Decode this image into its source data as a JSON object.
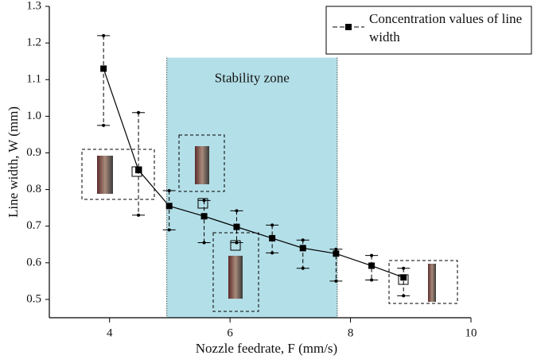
{
  "chart_data": {
    "type": "errorbar-line",
    "xlabel": "Nozzle feedrate, F (mm/s)",
    "ylabel": "Line width, W (mm)",
    "xlim": [
      3,
      10
    ],
    "ylim": [
      0.45,
      1.3
    ],
    "xticks": [
      4,
      6,
      8,
      10
    ],
    "yticks": [
      0.5,
      0.6,
      0.7,
      0.8,
      0.9,
      {
        "value": 1,
        "label": "1.0"
      },
      1.1,
      1.2,
      1.3
    ],
    "zone": {
      "label": "Stability zone",
      "x": [
        4.95,
        7.78
      ],
      "top": 1.16,
      "color": "#b3dfe8"
    },
    "series": [
      {
        "name": "Concentration values of line width",
        "color": "#000000",
        "x": [
          3.9,
          4.48,
          4.99,
          5.57,
          6.11,
          6.7,
          7.21,
          7.76,
          8.35,
          8.88
        ],
        "values": [
          1.13,
          0.853,
          0.755,
          0.727,
          0.698,
          0.667,
          0.64,
          0.625,
          0.592,
          0.56
        ],
        "lower": [
          0.975,
          0.73,
          0.69,
          0.655,
          0.655,
          0.627,
          0.585,
          0.55,
          0.553,
          0.51
        ],
        "upper": [
          1.22,
          1.01,
          0.797,
          0.77,
          0.742,
          0.703,
          0.662,
          0.637,
          0.62,
          0.585
        ]
      }
    ]
  }
}
